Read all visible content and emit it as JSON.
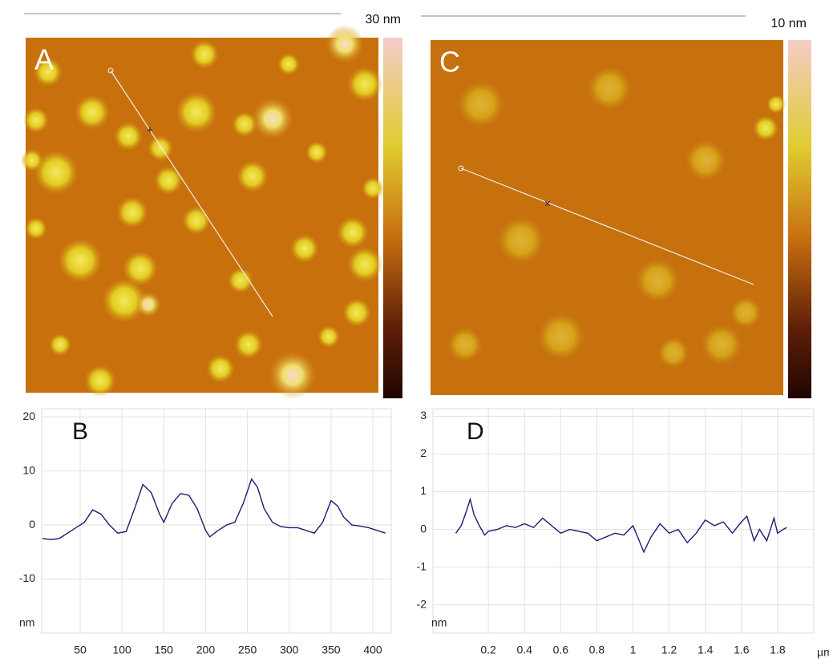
{
  "images": [
    {
      "label": "A",
      "scale_label": "30 nm"
    },
    {
      "label": "C",
      "scale_label": "10 nm"
    }
  ],
  "chart_data": [
    {
      "type": "line",
      "label": "B",
      "y_label": "nm",
      "color": "#1c1c70",
      "grid": true,
      "xlim": [
        4,
        422
      ],
      "ylim": [
        -20,
        21.5
      ],
      "xticks": [
        50,
        100,
        150,
        200,
        250,
        300,
        350,
        400
      ],
      "yticks": [
        -10,
        0,
        10,
        20
      ],
      "x": [
        5,
        15,
        25,
        35,
        45,
        55,
        65,
        75,
        85,
        95,
        105,
        115,
        125,
        135,
        145,
        150,
        160,
        170,
        180,
        190,
        200,
        205,
        215,
        225,
        235,
        245,
        255,
        262,
        270,
        280,
        290,
        300,
        310,
        320,
        330,
        340,
        350,
        358,
        365,
        375,
        385,
        395,
        405,
        415
      ],
      "values": [
        -2.5,
        -2.7,
        -2.5,
        -1.5,
        -0.5,
        0.5,
        2.8,
        2,
        0,
        -1.5,
        -1.2,
        3,
        7.5,
        6,
        2,
        0.5,
        4,
        5.8,
        5.5,
        3,
        -1,
        -2.2,
        -1,
        0,
        0.5,
        4,
        8.5,
        7,
        3,
        0.5,
        -0.3,
        -0.5,
        -0.5,
        -1,
        -1.5,
        0.5,
        4.5,
        3.5,
        1.5,
        0,
        -0.2,
        -0.5,
        -1,
        -1.5
      ]
    },
    {
      "type": "line",
      "label": "D",
      "y_label": "nm",
      "x_label": "µm",
      "color": "#1c1c70",
      "grid": true,
      "xlim": [
        0,
        2
      ],
      "ylim": [
        -2.75,
        3.2
      ],
      "xticks": [
        0.2,
        0.4,
        0.6,
        0.8,
        1,
        1.2,
        1.4,
        1.6,
        1.8
      ],
      "yticks": [
        -2,
        -1,
        0,
        1,
        2,
        3
      ],
      "x": [
        0.02,
        0.05,
        0.08,
        0.1,
        0.12,
        0.15,
        0.18,
        0.2,
        0.25,
        0.3,
        0.35,
        0.4,
        0.45,
        0.5,
        0.55,
        0.6,
        0.65,
        0.7,
        0.75,
        0.8,
        0.85,
        0.9,
        0.95,
        1.0,
        1.03,
        1.06,
        1.1,
        1.15,
        1.2,
        1.25,
        1.3,
        1.35,
        1.4,
        1.45,
        1.5,
        1.55,
        1.6,
        1.63,
        1.67,
        1.7,
        1.74,
        1.78,
        1.8,
        1.83,
        1.85
      ],
      "values": [
        -0.1,
        0.1,
        0.5,
        0.8,
        0.4,
        0.1,
        -0.15,
        -0.05,
        0,
        0.1,
        0.05,
        0.15,
        0.05,
        0.3,
        0.1,
        -0.1,
        0,
        -0.05,
        -0.1,
        -0.3,
        -0.2,
        -0.1,
        -0.15,
        0.1,
        -0.25,
        -0.6,
        -0.2,
        0.15,
        -0.1,
        0,
        -0.35,
        -0.1,
        0.25,
        0.1,
        0.2,
        -0.1,
        0.2,
        0.35,
        -0.3,
        0,
        -0.3,
        0.3,
        -0.1,
        0,
        0.05
      ]
    }
  ]
}
